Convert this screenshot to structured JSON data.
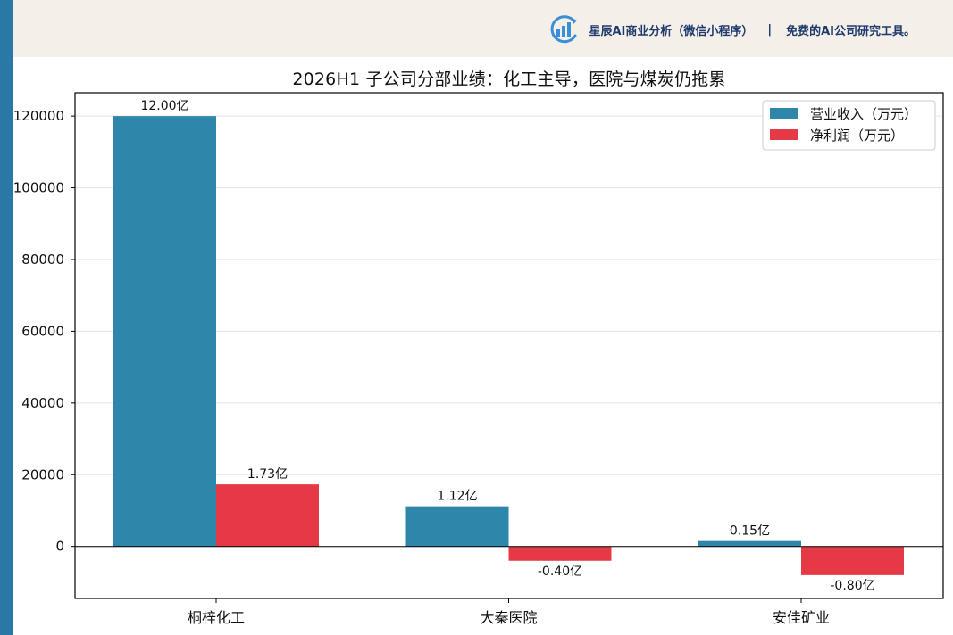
{
  "banner": {
    "brand_text": "星辰AI商业分析（微信小程序）",
    "separator": "|",
    "slogan": "免费的AI公司研究工具。",
    "logo_icon": "bar-chart-refresh-icon",
    "background": "#f4efe8",
    "text_color": "#1e3a6e"
  },
  "chart_data": {
    "type": "bar",
    "title": "2026H1 子公司分部业绩：化工主导，医院与煤炭仍拖累",
    "xlabel": "",
    "ylabel": "",
    "categories": [
      "桐梓化工",
      "大秦医院",
      "安佳矿业"
    ],
    "series": [
      {
        "name": "营业收入（万元）",
        "color": "#2e86ab",
        "values": [
          120000,
          11200,
          1500
        ],
        "labels": [
          "12.00亿",
          "1.12亿",
          "0.15亿"
        ]
      },
      {
        "name": "净利润（万元）",
        "color": "#e63946",
        "values": [
          17300,
          -4000,
          -8000
        ],
        "labels": [
          "1.73亿",
          "-0.40亿",
          "-0.80亿"
        ]
      }
    ],
    "ylim": [
      -14500,
      126500
    ],
    "yticks": [
      0,
      20000,
      40000,
      60000,
      80000,
      100000,
      120000
    ],
    "grid": true,
    "legend": "top-right"
  }
}
